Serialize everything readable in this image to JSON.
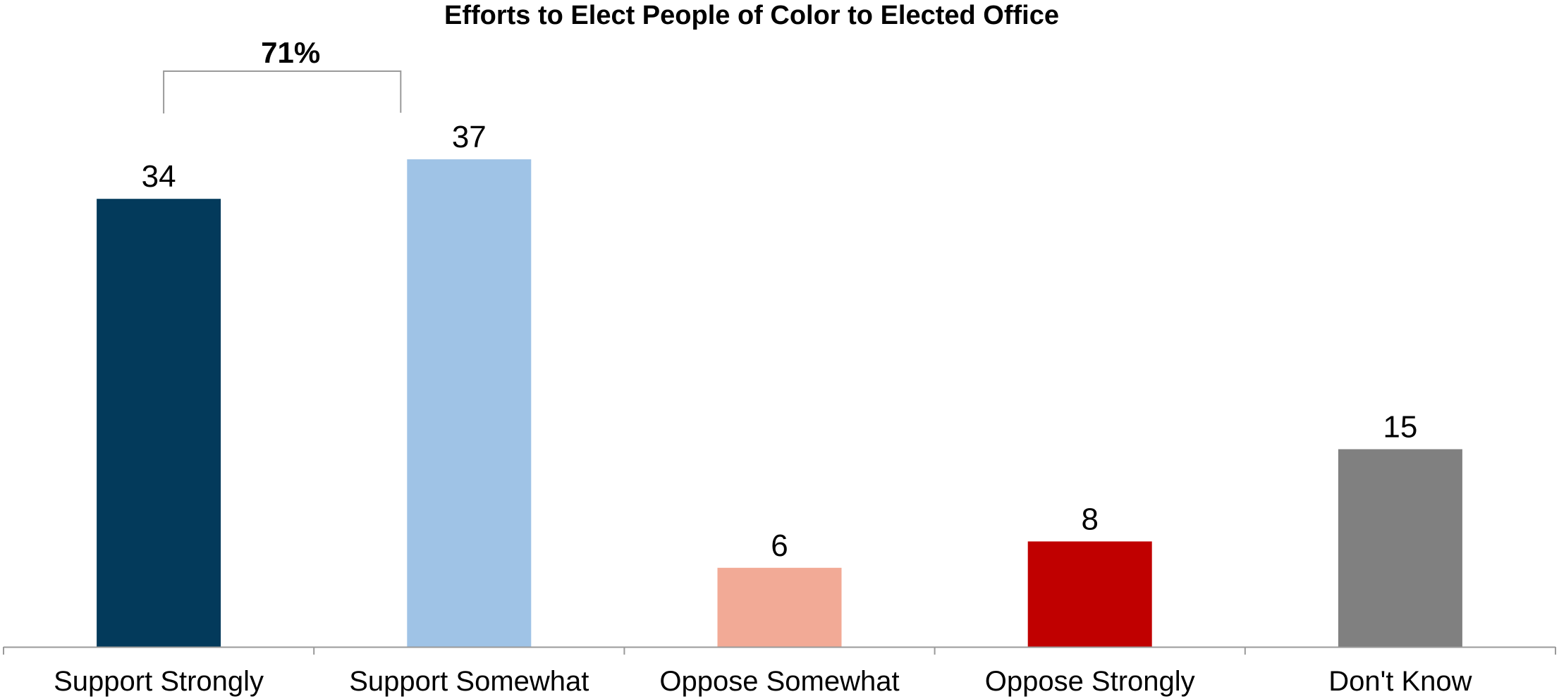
{
  "chart_data": {
    "type": "bar",
    "title": "Efforts to Elect People of Color to Elected Office",
    "xlabel": "",
    "ylabel": "",
    "categories": [
      "Support Strongly",
      "Support Somewhat",
      "Oppose Somewhat",
      "Oppose Strongly",
      "Don't Know"
    ],
    "values": [
      34,
      37,
      6,
      8,
      15
    ],
    "value_labels": [
      "34",
      "37",
      "6",
      "8",
      "15"
    ],
    "colors": [
      "#033a5b",
      "#9fc3e6",
      "#f2aa96",
      "#c00000",
      "#808080"
    ],
    "ylim": [
      0,
      45
    ],
    "grid": false,
    "legend": "none",
    "annotations": [
      {
        "type": "bracket",
        "text": "71%",
        "spans_categories": [
          "Support Strongly",
          "Support Somewhat"
        ]
      }
    ]
  }
}
